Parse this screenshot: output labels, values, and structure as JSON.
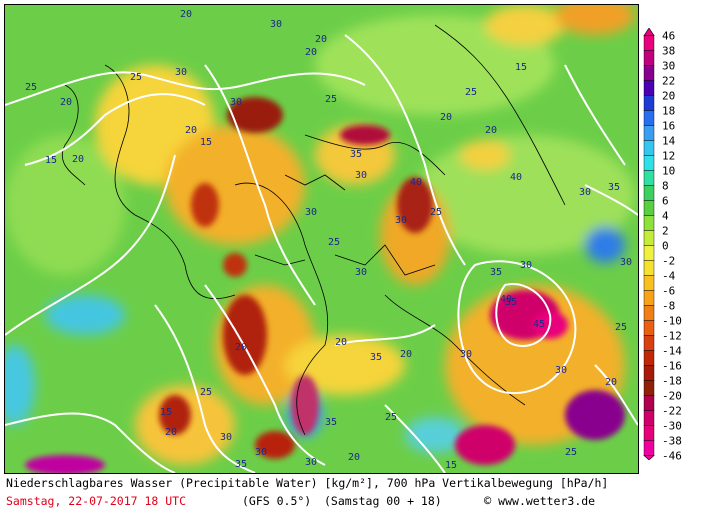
{
  "caption": {
    "line1": "Niederschlagbares Wasser (Precipitable Water) [kg/m²], 700 hPa Vertikalbewegung [hPa/h]",
    "date": "Samstag, 22-07-2017  18 UTC",
    "model": "(GFS 0.5°)",
    "run": "(Samstag 00 + 18)",
    "copyright_symbol": "©",
    "site": "www.wetter3.de"
  },
  "legend": {
    "labels": [
      "46",
      "38",
      "30",
      "22",
      "20",
      "18",
      "16",
      "14",
      "12",
      "10",
      "8",
      "6",
      "4",
      "2",
      "0",
      "-2",
      "-4",
      "-6",
      "-8",
      "-10",
      "-12",
      "-14",
      "-16",
      "-18",
      "-20",
      "-22",
      "-30",
      "-38",
      "-46"
    ],
    "colors": [
      "#e8007c",
      "#c0007f",
      "#8a008e",
      "#4b00b4",
      "#1f3bd6",
      "#2a6ef0",
      "#3a9df0",
      "#35c6f0",
      "#2fe0e8",
      "#30e0a0",
      "#3cd060",
      "#58d040",
      "#8ee03a",
      "#c6ec3a",
      "#f0f040",
      "#f6e030",
      "#f8c020",
      "#f8a218",
      "#f08014",
      "#e86010",
      "#d84010",
      "#c02808",
      "#a81a0a",
      "#902008",
      "#b00050",
      "#d0006a",
      "#e6007a",
      "#f000a0"
    ]
  },
  "map": {
    "isoline_labels": [
      "20",
      "30",
      "20",
      "25",
      "20",
      "15",
      "20",
      "25",
      "30",
      "20",
      "15",
      "30",
      "25",
      "20",
      "30",
      "30",
      "20",
      "20",
      "25",
      "30",
      "35",
      "40",
      "30",
      "25",
      "20",
      "30",
      "35",
      "30",
      "40",
      "45",
      "35",
      "30",
      "35",
      "30",
      "25",
      "20",
      "15",
      "30",
      "35",
      "30",
      "25",
      "20",
      "15",
      "20",
      "35",
      "40",
      "15",
      "20",
      "25",
      "30",
      "35",
      "30",
      "25",
      "20",
      "25"
    ]
  }
}
